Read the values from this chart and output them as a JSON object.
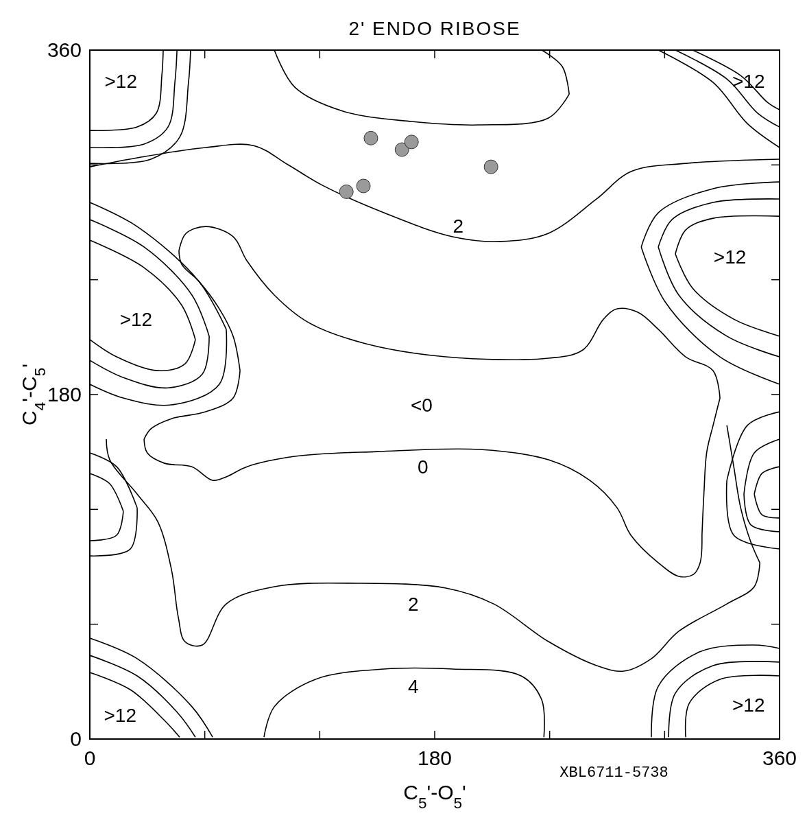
{
  "chart_data": {
    "type": "line",
    "title": "2' ENDO RIBOSE",
    "xlabel": "C$_{5}$'-O$_{5}$'",
    "ylabel": "C$_{4}$'-C$_{5}$'",
    "xlim": [
      0,
      360
    ],
    "ylim": [
      0,
      360
    ],
    "xticks": [
      0,
      {
        "value": 60,
        "label": null
      },
      {
        "value": 120,
        "label": null
      },
      180,
      {
        "value": 240,
        "label": null
      },
      {
        "value": 300,
        "label": null
      },
      360
    ],
    "yticks": [
      0,
      {
        "value": 60,
        "label": null
      },
      {
        "value": 120,
        "label": null
      },
      180,
      {
        "value": 240,
        "label": null
      },
      {
        "value": 300,
        "label": null
      },
      360
    ],
    "grid": false,
    "line_style": "solid",
    "series": [
      {
        "color": "#000000",
        "x": [
          46.5,
          50,
          60.5,
          74.8,
          82,
          96.3,
          114.2,
          142.8,
          185.8,
          239.4,
          257.3,
          268.1,
          275.2,
          286,
          296.7,
          311,
          325.3,
          328.9
        ],
        "values": [
          255,
          264,
          267.8,
          262.5,
          249.9,
          232,
          217.6,
          206.9,
          199.7,
          199,
          203.3,
          219.4,
          224.8,
          223,
          214.1,
          199.7,
          192.5,
          178.2
        ]
      },
      {
        "color": "#000000",
        "x": [
          46.5,
          48,
          56.9,
          67.6,
          74.8,
          78.4
        ],
        "values": [
          255,
          248,
          239.2,
          224.8,
          210.5,
          192.5
        ]
      },
      {
        "color": "#000000",
        "x": [
          28.3,
          31.9,
          42.6,
          60.5,
          74.8,
          78.4
        ],
        "values": [
          156.7,
          162.1,
          167.4,
          171,
          178.2,
          192.5
        ]
      },
      {
        "color": "#000000",
        "x": [
          28.3,
          30,
          39,
          53.3,
          64.1,
          71.2,
          82,
          107,
          150,
          203.6,
          239.4,
          260.9,
          275.2,
          282.4,
          296.7,
          307.4,
          315,
          318.5,
          319.5
        ],
        "values": [
          156.7,
          149.5,
          144.1,
          142.3,
          135.2,
          137,
          142.3,
          147.7,
          150.2,
          151.3,
          145.9,
          135.2,
          120.8,
          106.5,
          92.1,
          85,
          86,
          92,
          106.5
        ]
      },
      {
        "color": "#000000",
        "x": [
          319.5,
          320.5,
          322,
          325.3,
          328.9
        ],
        "values": [
          106.5,
          128,
          150,
          163.9,
          178.2
        ]
      },
      {
        "color": "#000000",
        "x": [
          0,
          24.7,
          60.5,
          85.5,
          103.4,
          121.3,
          153.5,
          189.3,
          214.4,
          239.4,
          264.5,
          282.4,
          311,
          360
        ],
        "values": [
          299,
          303.7,
          309.1,
          310.1,
          300.1,
          289.4,
          275,
          262.5,
          260,
          264.3,
          282.2,
          296.5,
          300.8,
          303
        ]
      },
      {
        "color": "#000000",
        "x": [
          96.3,
          107,
          132.1,
          167.9,
          203.6,
          239.4,
          250.2
        ],
        "values": [
          360,
          340.6,
          328.1,
          322.7,
          320.9,
          324.5,
          337
        ]
      },
      {
        "color": "#000000",
        "x": [
          235.9,
          246.6,
          250.2
        ],
        "values": [
          360,
          351.4,
          337
        ]
      },
      {
        "color": "#000000",
        "x": [
          8.6,
          10.4,
          24.7,
          35.4,
          42.6,
          46.2,
          49.7,
          58.7,
          71.2,
          96.3,
          139.2,
          185.8,
          210.8,
          239.4,
          264.5,
          278.8,
          293.1,
          307.4,
          332.5,
          346.8,
          349.7
        ],
        "values": [
          156.7,
          145.9,
          128,
          113.7,
          88.6,
          63.5,
          50.9,
          49.1,
          70.6,
          79.6,
          81.4,
          78.9,
          70.6,
          50.9,
          38.4,
          35.5,
          42,
          56.3,
          70.6,
          79.6,
          92.1
        ]
      },
      {
        "color": "#000000",
        "x": [
          332.5,
          336.1,
          339.7,
          345,
          349.7
        ],
        "values": [
          163.9,
          142.3,
          120.8,
          102.9,
          92.1
        ]
      },
      {
        "color": "#000000",
        "x": [
          90.9,
          96.3,
          117.8,
          153.5,
          189.3,
          225.1,
          235.9,
          237
        ],
        "values": [
          1,
          16.9,
          31.2,
          36.6,
          36.6,
          33,
          20.4,
          1
        ]
      },
      {
        "color": "#000000",
        "x": [
          0,
          31.9,
          46.9,
          51.5,
          52.6
        ],
        "values": [
          300.8,
          303,
          314.5,
          343.1,
          360
        ]
      },
      {
        "color": "#000000",
        "x": [
          0,
          28.3,
          40.8,
          44.4,
          45.5
        ],
        "values": [
          309.1,
          310.9,
          319.8,
          343.1,
          360
        ]
      },
      {
        "color": "#000000",
        "x": [
          0,
          24.7,
          34.7,
          37.6,
          38.3
        ],
        "values": [
          318,
          319.8,
          327,
          346.7,
          360
        ]
      },
      {
        "color": "#000000",
        "x": [
          296.7,
          325.3,
          343.2,
          360
        ],
        "values": [
          360,
          343.1,
          321.6,
          309.1
        ]
      },
      {
        "color": "#000000",
        "x": [
          305.6,
          332.5,
          348.6,
          360
        ],
        "values": [
          360,
          344.9,
          327,
          319.8
        ]
      },
      {
        "color": "#000000",
        "x": [
          314.6,
          339.7,
          354,
          360
        ],
        "values": [
          360,
          346.7,
          332.4,
          328.8
        ]
      },
      {
        "color": "#000000",
        "x": [
          287.8,
          296.7,
          325.3,
          360
        ],
        "values": [
          257.1,
          275,
          287.6,
          291.1
        ]
      },
      {
        "color": "#000000",
        "x": [
          287.8,
          300.3,
          328.9,
          360
        ],
        "values": [
          257.1,
          228.4,
          199.7,
          185.4
        ]
      },
      {
        "color": "#000000",
        "x": [
          296.7,
          303.8,
          325.3,
          360
        ],
        "values": [
          257.1,
          271.4,
          280.4,
          282.2
        ]
      },
      {
        "color": "#000000",
        "x": [
          296.7,
          307.4,
          332.5,
          360
        ],
        "values": [
          257.1,
          232,
          210.5,
          199.7
        ]
      },
      {
        "color": "#000000",
        "x": [
          305.6,
          311,
          325.3,
          360
        ],
        "values": [
          253.5,
          266,
          272.1,
          273.2
        ]
      },
      {
        "color": "#000000",
        "x": [
          305.6,
          314.6,
          336.1,
          360
        ],
        "values": [
          253.5,
          235.6,
          219.4,
          210.5
        ]
      },
      {
        "color": "#000000",
        "x": [
          0,
          24.7,
          56.9,
          71.2
        ],
        "values": [
          280.4,
          267.8,
          239.2,
          214.1
        ]
      },
      {
        "color": "#000000",
        "x": [
          0,
          17.5,
          42.6,
          67.6,
          71.2
        ],
        "values": [
          185.4,
          178.2,
          174.6,
          185.4,
          214.1
        ]
      },
      {
        "color": "#000000",
        "x": [
          0,
          28.3,
          53.3,
          62.3
        ],
        "values": [
          271.4,
          257.1,
          232,
          210.5
        ]
      },
      {
        "color": "#000000",
        "x": [
          0,
          17.5,
          40.8,
          58.7,
          62.3
        ],
        "values": [
          197.9,
          188.9,
          183.5,
          190.7,
          210.5
        ]
      },
      {
        "color": "#000000",
        "x": [
          0,
          28.3,
          48,
          55.1
        ],
        "values": [
          260.7,
          246.3,
          226.6,
          208.7
        ]
      },
      {
        "color": "#000000",
        "x": [
          0,
          14,
          35.4,
          49.7,
          55.1
        ],
        "values": [
          208.7,
          199.7,
          192.5,
          196.1,
          208.7
        ]
      },
      {
        "color": "#000000",
        "x": [
          0,
          14,
          24.7
        ],
        "values": [
          149.5,
          142.3,
          120.8
        ]
      },
      {
        "color": "#000000",
        "x": [
          0,
          21.1,
          24.7
        ],
        "values": [
          95.7,
          99.3,
          120.8
        ]
      },
      {
        "color": "#000000",
        "x": [
          0,
          10.4,
          17.5
        ],
        "values": [
          138.8,
          133.4,
          119
        ]
      },
      {
        "color": "#000000",
        "x": [
          0,
          14,
          17.5
        ],
        "values": [
          103.6,
          106.5,
          119
        ]
      },
      {
        "color": "#000000",
        "x": [
          332.5,
          343.2,
          360
        ],
        "values": [
          135.2,
          163.9,
          171
        ]
      },
      {
        "color": "#000000",
        "x": [
          332.5,
          336.1,
          360
        ],
        "values": [
          135.2,
          106.5,
          99.3
        ]
      },
      {
        "color": "#000000",
        "x": [
          341.4,
          346.8,
          360
        ],
        "values": [
          128,
          149.5,
          156.7
        ]
      },
      {
        "color": "#000000",
        "x": [
          341.4,
          345,
          360
        ],
        "values": [
          128,
          111.9,
          108.3
        ]
      },
      {
        "color": "#000000",
        "x": [
          346.8,
          350.8,
          360
        ],
        "values": [
          128,
          138.8,
          142.3
        ]
      },
      {
        "color": "#000000",
        "x": [
          346.8,
          350.8,
          360
        ],
        "values": [
          128,
          117.2,
          115.5
        ]
      },
      {
        "color": "#000000",
        "x": [
          0,
          24.7,
          53.3,
          64.1
        ],
        "values": [
          52.7,
          42,
          16.9,
          1
        ]
      },
      {
        "color": "#000000",
        "x": [
          0,
          24.7,
          46.2,
          55.1
        ],
        "values": [
          43.7,
          33,
          13.3,
          1
        ]
      },
      {
        "color": "#000000",
        "x": [
          0,
          21.1,
          39,
          46.9
        ],
        "values": [
          34.8,
          25.8,
          9.7,
          1
        ]
      },
      {
        "color": "#000000",
        "x": [
          293.1,
          296.7,
          318.2,
          346.8,
          360
        ],
        "values": [
          1,
          27.6,
          45.5,
          49.1,
          47.3
        ]
      },
      {
        "color": "#000000",
        "x": [
          302.1,
          305.6,
          325.3,
          360
        ],
        "values": [
          1,
          24,
          38.4,
          40.2
        ]
      },
      {
        "color": "#000000",
        "x": [
          311,
          312.8,
          328.9,
          360
        ],
        "values": [
          1,
          18.6,
          31.2,
          33
        ]
      },
      {
        "type": "scatter",
        "color": "#9a9a9a",
        "marker": "circle",
        "x": [
          146.7,
          162.9,
          167.9,
          209.4,
          142.8,
          133.9
        ],
        "values": [
          314,
          308,
          312,
          299,
          289,
          286
        ]
      }
    ],
    "annotations": [
      ">12",
      ">12",
      ">12",
      ">12",
      ">12",
      ">12",
      "2",
      "<0",
      "0",
      "2",
      "4",
      "XBL6711-5738"
    ]
  }
}
